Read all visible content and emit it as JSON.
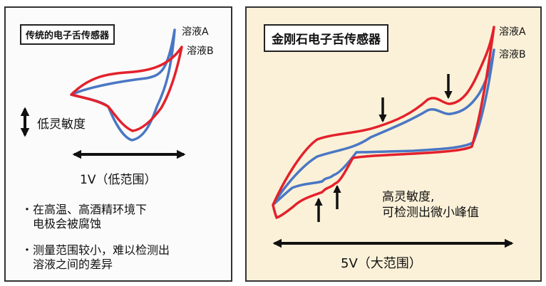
{
  "left": {
    "title": "传统的电子舌传感器",
    "legend_a": "溶液A",
    "legend_b": "溶液B",
    "sensitivity": "低灵敏度",
    "range": "1V（低范围）",
    "bullet1_line1": "・在高温、高酒精环境下",
    "bullet1_line2": "电极会被腐蚀",
    "bullet2_line1": "・测量范围较小，难以检测出",
    "bullet2_line2": "溶液之间的差异"
  },
  "right": {
    "title": "金刚石电子舌传感器",
    "legend_a": "溶液A",
    "legend_b": "溶液B",
    "sensitivity_line1": "高灵敏度,",
    "sensitivity_line2": "可检测出微小峰值",
    "range": "5V（大范围）"
  },
  "colors": {
    "solution_a": "#e3212b",
    "solution_b": "#4a77c4",
    "right_bg": "#fbf1d8",
    "left_bg": "#fbfbfb"
  }
}
